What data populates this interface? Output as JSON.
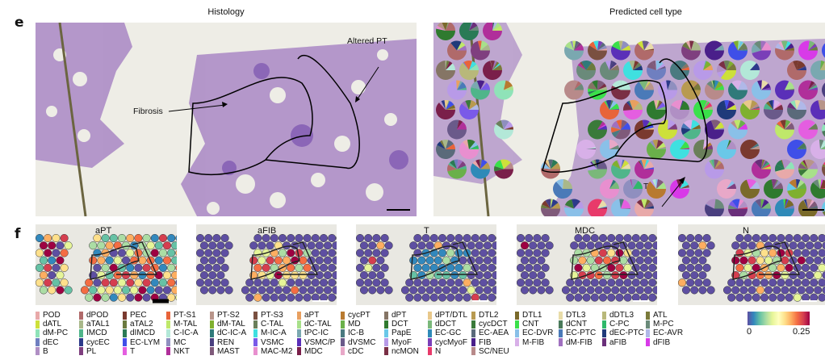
{
  "panel_e": {
    "label": "e",
    "left": {
      "title": "Histology",
      "annotations": [
        "Altered PT",
        "Fibrosis"
      ]
    },
    "right": {
      "title": "Predicted cell type",
      "annotations": [
        "T"
      ]
    }
  },
  "panel_f": {
    "label": "f",
    "maps": [
      {
        "title": "aPT"
      },
      {
        "title": "aFIB"
      },
      {
        "title": "T"
      },
      {
        "title": "MDC"
      },
      {
        "title": "N"
      }
    ]
  },
  "legend": {
    "columns": [
      [
        {
          "label": "POD",
          "color": "#e8a9a9"
        },
        {
          "label": "dATL",
          "color": "#cde03a"
        },
        {
          "label": "dM-PC",
          "color": "#8fe3b8"
        },
        {
          "label": "dEC",
          "color": "#6f7fc0"
        },
        {
          "label": "B",
          "color": "#b08fc4"
        }
      ],
      [
        {
          "label": "dPOD",
          "color": "#b06a6a"
        },
        {
          "label": "aTAL1",
          "color": "#a9b88a"
        },
        {
          "label": "IMCD",
          "color": "#4fb58a"
        },
        {
          "label": "cycEC",
          "color": "#2c3a8a"
        },
        {
          "label": "PL",
          "color": "#7f3f7f"
        }
      ],
      [
        {
          "label": "PEC",
          "color": "#7a3a2f"
        },
        {
          "label": "aTAL2",
          "color": "#6b7a3f"
        },
        {
          "label": "dIMCD",
          "color": "#2a7a55"
        },
        {
          "label": "EC-LYM",
          "color": "#3f4fe8"
        },
        {
          "label": "T",
          "color": "#e45ee0"
        }
      ],
      [
        {
          "label": "PT-S1",
          "color": "#e8643a"
        },
        {
          "label": "M-TAL",
          "color": "#bfe86a"
        },
        {
          "label": "C-IC-A",
          "color": "#b3e8d8"
        },
        {
          "label": "MC",
          "color": "#8f8fbf"
        },
        {
          "label": "NKT",
          "color": "#b02f9a"
        }
      ],
      [
        {
          "label": "PT-S2",
          "color": "#b8958a"
        },
        {
          "label": "dM-TAL",
          "color": "#7fb02f"
        },
        {
          "label": "dC-IC-A",
          "color": "#2f7a7a"
        },
        {
          "label": "REN",
          "color": "#4a3f7f"
        },
        {
          "label": "MAST",
          "color": "#7f5a7a"
        }
      ],
      [
        {
          "label": "PT-S3",
          "color": "#7a5040"
        },
        {
          "label": "C-TAL",
          "color": "#6a7f5a"
        },
        {
          "label": "M-IC-A",
          "color": "#3fe0e0"
        },
        {
          "label": "VSMC",
          "color": "#7a5ae8"
        },
        {
          "label": "MAC-M2",
          "color": "#e88fcf"
        }
      ],
      [
        {
          "label": "aPT",
          "color": "#e8a060"
        },
        {
          "label": "dC-TAL",
          "color": "#a8e08a"
        },
        {
          "label": "tPC-IC",
          "color": "#7aa8b0"
        },
        {
          "label": "VSMC/P",
          "color": "#5a2fb8"
        },
        {
          "label": "MDC",
          "color": "#7a1f4a"
        }
      ],
      [
        {
          "label": "cycPT",
          "color": "#b87a30"
        },
        {
          "label": "MD",
          "color": "#6ab04a"
        },
        {
          "label": "IC-B",
          "color": "#4a7a80"
        },
        {
          "label": "dVSMC",
          "color": "#6a5a8a"
        },
        {
          "label": "cDC",
          "color": "#e8a8c8"
        }
      ],
      [
        {
          "label": "dPT",
          "color": "#857565"
        },
        {
          "label": "DCT",
          "color": "#2f7a2f"
        },
        {
          "label": "PapE",
          "color": "#6ac8e8"
        },
        {
          "label": "MyoF",
          "color": "#b89ae8"
        },
        {
          "label": "ncMON",
          "color": "#7a2f45"
        }
      ],
      [
        {
          "label": "dPT/DTL",
          "color": "#e8c88a"
        },
        {
          "label": "dDCT",
          "color": "#7ab87a"
        },
        {
          "label": "EC-GC",
          "color": "#2f8ab8"
        },
        {
          "label": "cycMyoF",
          "color": "#7a3fb8"
        },
        {
          "label": "N",
          "color": "#e83a6a"
        }
      ],
      [
        {
          "label": "DTL2",
          "color": "#b89a50"
        },
        {
          "label": "cycDCT",
          "color": "#3a7a3a"
        },
        {
          "label": "EC-AEA",
          "color": "#5a6a7a"
        },
        {
          "label": "FIB",
          "color": "#4a1f8a"
        },
        {
          "label": "SC/NEU",
          "color": "#b88a8a"
        }
      ],
      [
        {
          "label": "DTL1",
          "color": "#7a6a2a"
        },
        {
          "label": "CNT",
          "color": "#3ae04a"
        },
        {
          "label": "EC-DVR",
          "color": "#8ac0e8"
        },
        {
          "label": "M-FIB",
          "color": "#d8b0e8"
        }
      ],
      [
        {
          "label": "DTL3",
          "color": "#e8dca8"
        },
        {
          "label": "dCNT",
          "color": "#4a7a5a"
        },
        {
          "label": "EC-PTC",
          "color": "#4a7ab8"
        },
        {
          "label": "dM-FIB",
          "color": "#a070c0"
        }
      ],
      [
        {
          "label": "dDTL3",
          "color": "#b8b87a"
        },
        {
          "label": "C-PC",
          "color": "#2fb86a"
        },
        {
          "label": "dEC-PTC",
          "color": "#1f3a7a"
        },
        {
          "label": "aFIB",
          "color": "#6a2f7a"
        }
      ],
      [
        {
          "label": "ATL",
          "color": "#7a7a3a"
        },
        {
          "label": "M-PC",
          "color": "#6a8a7a"
        },
        {
          "label": "EC-AVR",
          "color": "#b0b8e8"
        },
        {
          "label": "dFIB",
          "color": "#d83ae8"
        }
      ]
    ]
  },
  "colorbar": {
    "min_label": "0",
    "max_label": "0.25",
    "colormap": "Spectral_r",
    "range": [
      0,
      0.25
    ]
  }
}
